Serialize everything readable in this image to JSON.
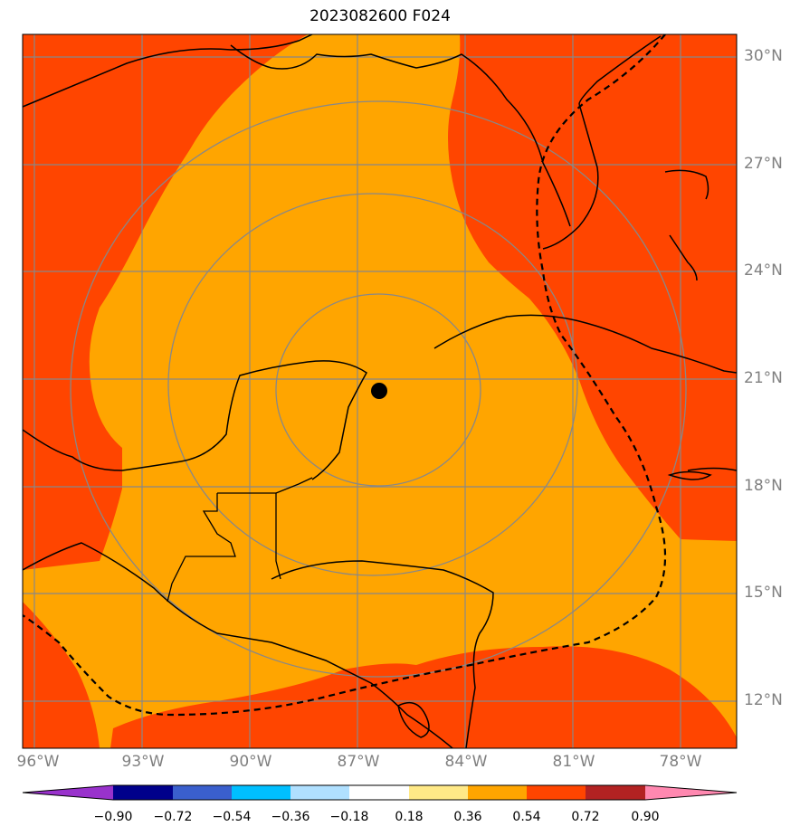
{
  "title": "2023082600 F024",
  "lat_labels": [
    "30°N",
    "27°N",
    "24°N",
    "21°N",
    "18°N",
    "15°N",
    "12°N"
  ],
  "lon_labels": [
    "96°W",
    "93°W",
    "90°W",
    "87°W",
    "84°W",
    "81°W",
    "78°W"
  ],
  "colorbar": {
    "labels": [
      "−0.90",
      "−0.72",
      "−0.54",
      "−0.36",
      "−0.18",
      "0.18",
      "0.36",
      "0.54",
      "0.72",
      "0.90"
    ],
    "colors": [
      "#9932cc",
      "#00008b",
      "#3a5fcd",
      "#00bfff",
      "#b0e0ff",
      "#ffffff",
      "#ffe987",
      "#ffa500",
      "#ff4500",
      "#b22222",
      "#ff88b0"
    ]
  },
  "fill_colors": {
    "mid": "#ffa500",
    "high": "#ff4500"
  },
  "center_marker": {
    "lat": 20.7,
    "lon": -86.5
  }
}
